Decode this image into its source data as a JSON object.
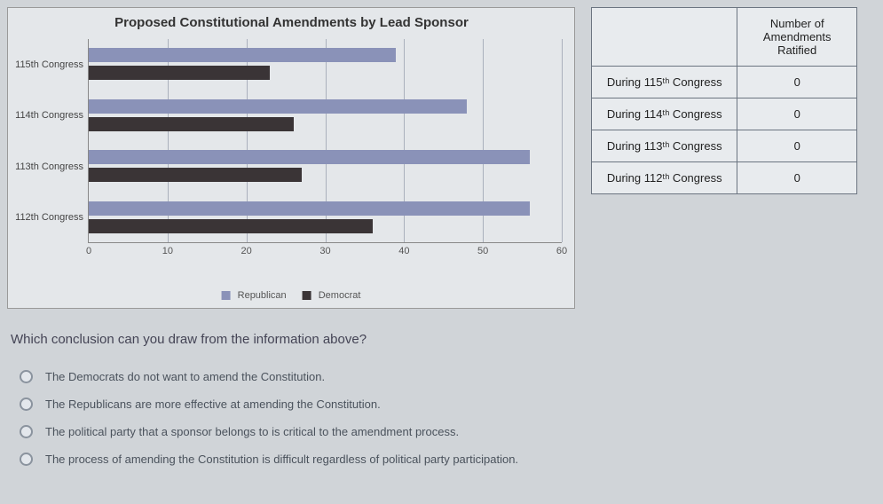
{
  "chart": {
    "title": "Proposed Constitutional Amendments by Lead Sponsor",
    "type": "bar",
    "orientation": "horizontal",
    "categories": [
      "115th Congress",
      "114th Congress",
      "113th Congress",
      "112th Congress"
    ],
    "series": [
      {
        "name": "Republican",
        "color": "#8a92b8",
        "values": [
          39,
          48,
          56,
          56
        ]
      },
      {
        "name": "Democrat",
        "color": "#3a3436",
        "values": [
          23,
          26,
          27,
          36
        ]
      }
    ],
    "x_ticks": [
      0,
      10,
      20,
      30,
      40,
      50,
      60
    ],
    "xlim": [
      0,
      60
    ],
    "background": "#e4e7ea",
    "grid_color": "#aab0bc",
    "label_fontsize": 11,
    "title_fontsize": 15,
    "legend_position": "bottom"
  },
  "table": {
    "header": [
      "",
      "Number of Amendments Ratified"
    ],
    "rows": [
      [
        "During 115ᵗʰ Congress",
        "0"
      ],
      [
        "During 114ᵗʰ Congress",
        "0"
      ],
      [
        "During 113ᵗʰ Congress",
        "0"
      ],
      [
        "During 112ᵗʰ Congress",
        "0"
      ]
    ]
  },
  "question": {
    "prompt": "Which conclusion can you draw from the information above?",
    "options": [
      "The Democrats do not want to amend the Constitution.",
      "The Republicans are more effective at amending the Constitution.",
      "The political party that a sponsor belongs to is critical to the amendment process.",
      "The process of amending the Constitution is difficult regardless of political party participation."
    ]
  }
}
